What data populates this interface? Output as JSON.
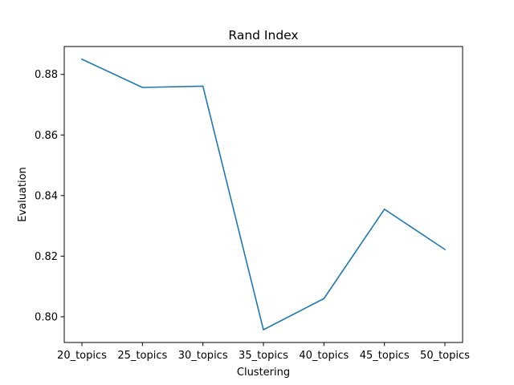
{
  "chart_data": {
    "type": "line",
    "title": "Rand Index",
    "xlabel": "Clustering",
    "ylabel": "Evaluation",
    "categories": [
      "20_topics",
      "25_topics",
      "30_topics",
      "35_topics",
      "40_topics",
      "45_topics",
      "50_topics"
    ],
    "series": [
      {
        "values": [
          0.885,
          0.8757,
          0.8761,
          0.7957,
          0.806,
          0.8355,
          0.8222
        ],
        "color": "#1f77b4"
      }
    ],
    "yticks": [
      "0.80",
      "0.82",
      "0.84",
      "0.86",
      "0.88"
    ],
    "ylim": [
      0.7915,
      0.8892
    ],
    "grid": false,
    "legend": false
  }
}
